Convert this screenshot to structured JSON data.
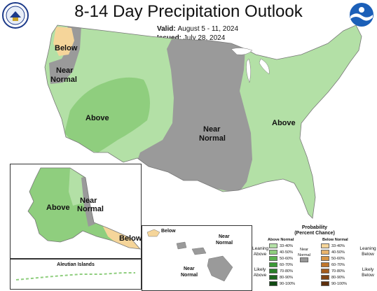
{
  "header": {
    "title": "8-14 Day Precipitation Outlook",
    "valid_label": "Valid:",
    "valid_value": "August 5 - 11, 2024",
    "issued_label": "Issued:",
    "issued_value": "July 28, 2024"
  },
  "logos": {
    "left_text": "DEPARTMENT OF COMMERCE",
    "right_text": "NOAA"
  },
  "map_labels": {
    "below_nw": "Below",
    "near_normal_nw_1": "Near",
    "near_normal_nw_2": "Normal",
    "above_sw": "Above",
    "near_normal_c_1": "Near",
    "near_normal_c_2": "Normal",
    "above_e": "Above",
    "ak_above": "Above",
    "ak_near_1": "Near",
    "ak_near_2": "Normal",
    "ak_below": "Below",
    "aleutian": "Aleutian Islands",
    "hi_below": "Below",
    "hi_near_a_1": "Near",
    "hi_near_a_2": "Normal",
    "hi_near_b_1": "Near",
    "hi_near_b_2": "Normal"
  },
  "legend": {
    "title_1": "Probability",
    "title_2": "(Percent Chance)",
    "above_header": "Above Normal",
    "below_header": "Below Normal",
    "near_label_1": "Near",
    "near_label_2": "Normal",
    "leaning_above_1": "Leaning",
    "leaning_above_2": "Above",
    "likely_above_1": "Likely",
    "likely_above_2": "Above",
    "leaning_below_1": "Leaning",
    "leaning_below_2": "Below",
    "likely_below_1": "Likely",
    "likely_below_2": "Below",
    "above_levels": [
      {
        "label": "33-40%",
        "color": "#b3e0a6"
      },
      {
        "label": "40-50%",
        "color": "#8fce7e"
      },
      {
        "label": "50-60%",
        "color": "#5cb24f"
      },
      {
        "label": "60-70%",
        "color": "#3c9a37"
      },
      {
        "label": "70-80%",
        "color": "#2a7f2a"
      },
      {
        "label": "80-90%",
        "color": "#1b651d"
      },
      {
        "label": "90-100%",
        "color": "#0f4a12"
      }
    ],
    "below_levels": [
      {
        "label": "33-40%",
        "color": "#f5d59a"
      },
      {
        "label": "40-50%",
        "color": "#e8b36c"
      },
      {
        "label": "50-60%",
        "color": "#d69444"
      },
      {
        "label": "60-70%",
        "color": "#c0762b"
      },
      {
        "label": "70-80%",
        "color": "#a35b1d"
      },
      {
        "label": "80-90%",
        "color": "#7f4314"
      },
      {
        "label": "90-100%",
        "color": "#5e2f0d"
      }
    ],
    "near_color": "#9a9a9a"
  },
  "colors": {
    "above_light": "#b3e0a6",
    "above_mid": "#8fce7e",
    "below_light": "#f5d59a",
    "near_normal": "#9a9a9a"
  }
}
